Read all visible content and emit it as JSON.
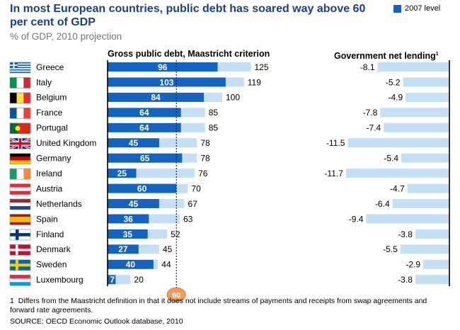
{
  "title": "In most European countries, public debt has soared way above 60 per cent of GDP",
  "subtitle": "% of GDP, 2010 projection",
  "legend_label": "2007 level",
  "colors": {
    "debt_2010": "#c5dff5",
    "debt_2007": "#1463c0",
    "lending": "#c5dff5",
    "marker": "#f39a5a",
    "title": "#1b3f8f"
  },
  "chart_data": {
    "type": "bar",
    "categories": [
      "Greece",
      "Italy",
      "Belgium",
      "France",
      "Portugal",
      "United Kingdom",
      "Germany",
      "Ireland",
      "Austria",
      "Netherlands",
      "Spain",
      "Finland",
      "Denmark",
      "Sweden",
      "Luxembourg"
    ],
    "flags": [
      "greece-flag-icon",
      "italy-flag-icon",
      "belgium-flag-icon",
      "france-flag-icon",
      "portugal-flag-icon",
      "united-kingdom-flag-icon",
      "germany-flag-icon",
      "ireland-flag-icon",
      "austria-flag-icon",
      "netherlands-flag-icon",
      "spain-flag-icon",
      "finland-flag-icon",
      "denmark-flag-icon",
      "sweden-flag-icon",
      "luxembourg-flag-icon"
    ],
    "debt": {
      "title": "Gross public debt, Maastricht criterion",
      "reference_value": 60,
      "reference_label": "60",
      "series": [
        {
          "name": "2007 level",
          "values": [
            96,
            103,
            84,
            64,
            64,
            45,
            65,
            25,
            60,
            45,
            36,
            35,
            27,
            40,
            7
          ]
        },
        {
          "values": [
            125,
            119,
            100,
            85,
            85,
            78,
            78,
            76,
            70,
            67,
            63,
            52,
            45,
            44,
            20
          ]
        }
      ]
    },
    "lending": {
      "title": "Government net lending",
      "title_sup": "1",
      "values": [
        -8.1,
        -5.2,
        -4.9,
        -7.8,
        -7.4,
        -11.5,
        -5.4,
        -11.7,
        -4.7,
        -6.4,
        -9.4,
        -3.8,
        -5.5,
        -2.9,
        -3.8
      ],
      "labels": [
        "-8.1",
        "-5.2",
        "-4.9",
        "-7.8",
        "-7.4",
        "-11.5",
        "-5.4",
        "-11.7",
        "-4.7",
        "-6.4",
        "-9.4",
        "-3.8",
        "-5.5",
        "-2.9",
        "-3.8"
      ]
    }
  },
  "footnote_marker": "1",
  "footnote": "Differs from the Maastricht definition in that it does not include streams of payments and receipts from swap agreements and forward rate agreements.",
  "source": "SOURCE: OECD Economic Outlook database, 2010"
}
